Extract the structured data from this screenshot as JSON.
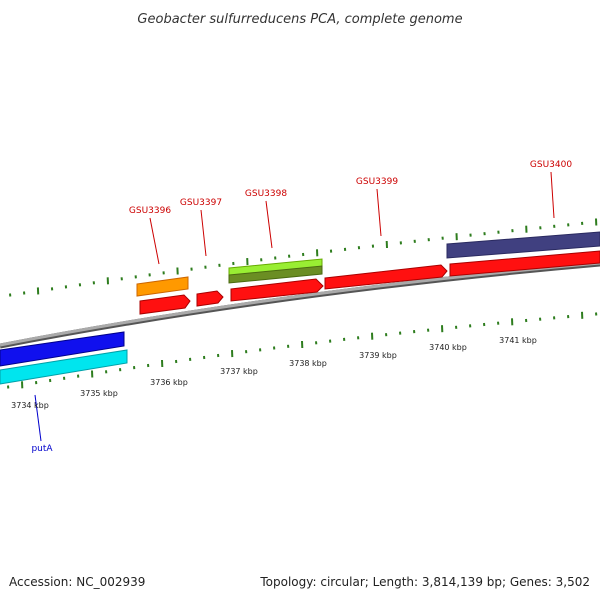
{
  "title": "Geobacter sulfurreducens PCA, complete genome",
  "footer": {
    "accession": "Accession: NC_002939",
    "summary": "Topology: circular; Length: 3,814,139 bp; Genes: 3,502"
  },
  "scale": {
    "kbp_labels": [
      "3734 kbp",
      "3735 kbp",
      "3736 kbp",
      "3737 kbp",
      "3738 kbp",
      "3739 kbp",
      "3740 kbp",
      "3741 kbp"
    ]
  },
  "colors": {
    "backbone": "#8c8c8c",
    "tick": "#2e7d1e",
    "forward_cds": "#ff0000",
    "reverse_gene": "#0000ff",
    "reverse_cds": "#00e5ee",
    "orange_feature": "#ff9900",
    "lime_feature": "#99ee33",
    "olive_feature": "#6b8e23",
    "navy_feature": "#404080",
    "label_forward": "#cc0000",
    "label_reverse": "#0000cc"
  },
  "genes": {
    "forward": [
      "GSU3396",
      "GSU3397",
      "GSU3398",
      "GSU3399",
      "GSU3400"
    ],
    "reverse": [
      "putA"
    ]
  }
}
